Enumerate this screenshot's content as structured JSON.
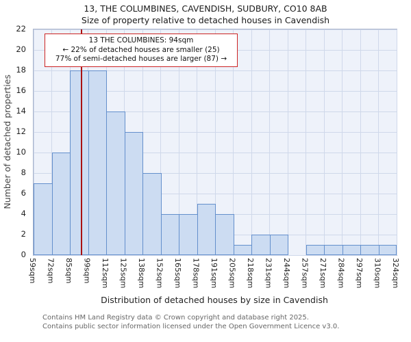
{
  "title": "13, THE COLUMBINES, CAVENDISH, SUDBURY, CO10 8AB",
  "subtitle": "Size of property relative to detached houses in Cavendish",
  "chart_data": {
    "type": "bar",
    "title": "13, THE COLUMBINES, CAVENDISH, SUDBURY, CO10 8AB",
    "subtitle": "Size of property relative to detached houses in Cavendish",
    "xlabel": "Distribution of detached houses by size in Cavendish",
    "ylabel": "Number of detached properties",
    "ylim": [
      0,
      22
    ],
    "ytick_step": 2,
    "grid": true,
    "legend_position": "none",
    "bin_edges_sqm": [
      59,
      72,
      85,
      99,
      112,
      125,
      138,
      152,
      165,
      178,
      191,
      205,
      218,
      231,
      244,
      257,
      271,
      284,
      297,
      310,
      324
    ],
    "x_tick_labels": [
      "59sqm",
      "72sqm",
      "85sqm",
      "99sqm",
      "112sqm",
      "125sqm",
      "138sqm",
      "152sqm",
      "165sqm",
      "178sqm",
      "191sqm",
      "205sqm",
      "218sqm",
      "231sqm",
      "244sqm",
      "257sqm",
      "271sqm",
      "284sqm",
      "297sqm",
      "310sqm",
      "324sqm"
    ],
    "values": [
      7,
      10,
      18,
      18,
      14,
      12,
      8,
      4,
      4,
      5,
      4,
      1,
      2,
      2,
      0,
      1,
      1,
      1,
      1,
      1
    ],
    "marker_value_sqm": 94,
    "annotation": {
      "line1": "13 THE COLUMBINES: 94sqm",
      "line2": "← 22% of detached houses are smaller (25)",
      "line3": "77% of semi-detached houses are larger (87) →"
    },
    "colors": {
      "bar_fill": "#ccdcf2",
      "bar_border": "#638fcc",
      "marker_line": "#aa1111",
      "annotation_border": "#cc2222",
      "grid": "#cfd8ea",
      "plot_background": "#eef2fa"
    }
  },
  "footer": {
    "line1": "Contains HM Land Registry data © Crown copyright and database right 2025.",
    "line2": "Contains public sector information licensed under the Open Government Licence v3.0."
  }
}
